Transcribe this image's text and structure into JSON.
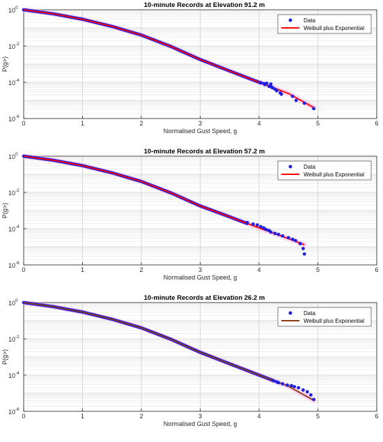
{
  "chart_data": [
    {
      "type": "scatter",
      "title": "10-minute Records at Elevation 91.2 m",
      "xlabel": "Normalised Gust Speed, g",
      "ylabel": "P(g>)",
      "xlim": [
        0,
        6
      ],
      "ylim": [
        1e-06,
        1
      ],
      "yscale": "log",
      "grid": true,
      "legend_position": "top-right",
      "x_ticks": [
        "0",
        "1",
        "2",
        "3",
        "4",
        "5",
        "6"
      ],
      "y_ticks": [
        {
          "base": "10",
          "exp": "0"
        },
        {
          "base": "10",
          "exp": "-2"
        },
        {
          "base": "10",
          "exp": "-4"
        },
        {
          "base": "10",
          "exp": "-6"
        }
      ],
      "series": [
        {
          "name": "Data",
          "kind": "scatter",
          "color": "#1f1fe0",
          "x": [
            4.03,
            4.08,
            4.1,
            4.13,
            4.17,
            4.2,
            4.21,
            4.23,
            4.27,
            4.3,
            4.36,
            4.38,
            4.57,
            4.63,
            4.77,
            4.93
          ],
          "y": [
            9.5e-05,
            8.5e-05,
            7.5e-05,
            8.8e-05,
            6e-05,
            8e-05,
            5.5e-05,
            5e-05,
            4.2e-05,
            3.4e-05,
            2.6e-05,
            2.2e-05,
            1.7e-05,
            1e-05,
            7e-06,
            3.5e-06
          ]
        },
        {
          "name": "Weibull plus Exponential",
          "kind": "line",
          "color": "#ff0000",
          "x": [
            0,
            0.5,
            1,
            1.5,
            2,
            2.5,
            3,
            3.5,
            4,
            4.5,
            4.93
          ],
          "y": [
            1,
            0.6,
            0.3,
            0.12,
            0.04,
            0.0095,
            0.0018,
            0.00042,
            0.0001,
            2.4e-05,
            4e-06
          ]
        }
      ]
    },
    {
      "type": "scatter",
      "title": "10-minute Records at Elevation 57.2 m",
      "xlabel": "Normalised Gust Speed, g",
      "ylabel": "P(g>)",
      "xlim": [
        0,
        6
      ],
      "ylim": [
        1e-06,
        1
      ],
      "yscale": "log",
      "grid": true,
      "legend_position": "top-right",
      "x_ticks": [
        "0",
        "1",
        "2",
        "3",
        "4",
        "5",
        "6"
      ],
      "y_ticks": [
        {
          "base": "10",
          "exp": "0"
        },
        {
          "base": "10",
          "exp": "-2"
        },
        {
          "base": "10",
          "exp": "-4"
        },
        {
          "base": "10",
          "exp": "-6"
        }
      ],
      "series": [
        {
          "name": "Data",
          "kind": "scatter",
          "color": "#1f1fe0",
          "x": [
            3.8,
            3.9,
            3.97,
            4.03,
            4.08,
            4.12,
            4.17,
            4.2,
            4.27,
            4.33,
            4.4,
            4.5,
            4.57,
            4.62,
            4.7,
            4.75,
            4.77
          ],
          "y": [
            0.00022,
            0.00018,
            0.00016,
            0.00013,
            0.00011,
            9e-05,
            8e-05,
            6.5e-05,
            5.5e-05,
            4.8e-05,
            4e-05,
            3.2e-05,
            2.6e-05,
            2.2e-05,
            1.5e-05,
            8e-06,
            4e-06
          ]
        },
        {
          "name": "Weibull plus Exponential",
          "kind": "line",
          "color": "#ff0000",
          "x": [
            0,
            0.5,
            1,
            1.5,
            2,
            2.5,
            3,
            3.5,
            4,
            4.5,
            4.77
          ],
          "y": [
            1,
            0.6,
            0.3,
            0.12,
            0.04,
            0.0095,
            0.0018,
            0.00045,
            0.00011,
            2.8e-05,
            1.3e-05
          ]
        }
      ]
    },
    {
      "type": "scatter",
      "title": "10-minute Records at Elevation 26.2 m",
      "xlabel": "Normalised Gust Speed, g",
      "ylabel": "P(g>)",
      "xlim": [
        0,
        6
      ],
      "ylim": [
        1e-06,
        1
      ],
      "yscale": "log",
      "grid": true,
      "legend_position": "top-right",
      "x_ticks": [
        "0",
        "1",
        "2",
        "3",
        "4",
        "5",
        "6"
      ],
      "y_ticks": [
        {
          "base": "10",
          "exp": "0"
        },
        {
          "base": "10",
          "exp": "-2"
        },
        {
          "base": "10",
          "exp": "-4"
        },
        {
          "base": "10",
          "exp": "-6"
        }
      ],
      "series": [
        {
          "name": "Data",
          "kind": "scatter",
          "color": "#1f1fe0",
          "x": [
            4.25,
            4.3,
            4.33,
            4.4,
            4.48,
            4.55,
            4.6,
            4.67,
            4.75,
            4.82,
            4.88,
            4.93
          ],
          "y": [
            4.8e-05,
            4.2e-05,
            3.8e-05,
            3.3e-05,
            2.8e-05,
            2.6e-05,
            2.3e-05,
            2e-05,
            1.5e-05,
            1.2e-05,
            8e-06,
            4.5e-06
          ]
        },
        {
          "name": "Weibull plus Exponential",
          "kind": "line",
          "color": "#8b3a12",
          "x": [
            0,
            0.5,
            1,
            1.5,
            2,
            2.5,
            3,
            3.5,
            4,
            4.5,
            4.93
          ],
          "y": [
            1,
            0.6,
            0.3,
            0.12,
            0.04,
            0.0095,
            0.0018,
            0.00042,
            0.0001,
            2.4e-05,
            4e-06
          ]
        }
      ]
    }
  ]
}
